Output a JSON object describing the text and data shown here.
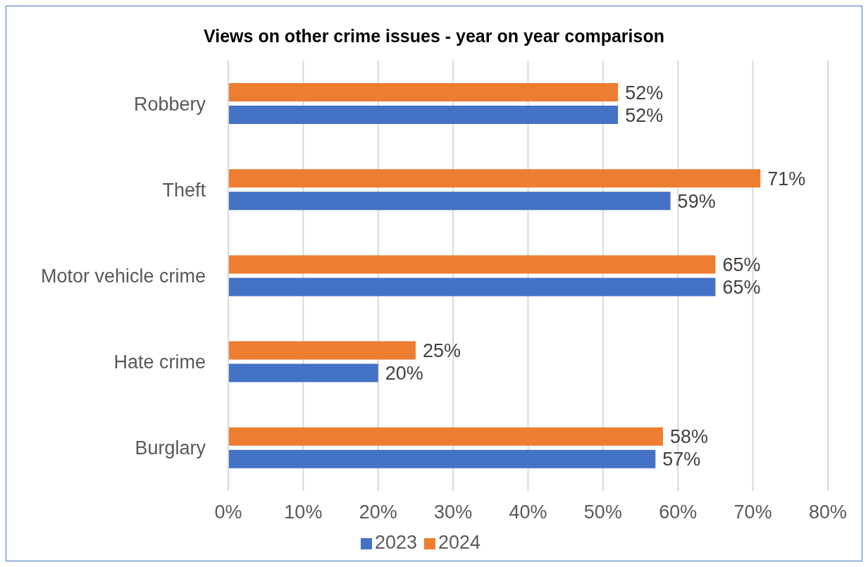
{
  "chart_data": {
    "type": "bar",
    "orientation": "horizontal",
    "title": "Views on other crime issues - year on year comparison",
    "categories": [
      "Robbery",
      "Theft",
      "Motor vehicle crime",
      "Hate crime",
      "Burglary"
    ],
    "series": [
      {
        "name": "2024",
        "color": "#ed7d31",
        "values": [
          52,
          71,
          65,
          25,
          58
        ],
        "value_labels": [
          "52%",
          "71%",
          "65%",
          "25%",
          "58%"
        ]
      },
      {
        "name": "2023",
        "color": "#4472c4",
        "values": [
          52,
          59,
          65,
          20,
          57
        ],
        "value_labels": [
          "52%",
          "59%",
          "65%",
          "20%",
          "57%"
        ]
      }
    ],
    "xlim": [
      0,
      80
    ],
    "xticks": [
      {
        "value": 0,
        "label": "0%"
      },
      {
        "value": 10,
        "label": "10%"
      },
      {
        "value": 20,
        "label": "20%"
      },
      {
        "value": 30,
        "label": "30%"
      },
      {
        "value": 40,
        "label": "40%"
      },
      {
        "value": 50,
        "label": "50%"
      },
      {
        "value": 60,
        "label": "60%"
      },
      {
        "value": 70,
        "label": "70%"
      },
      {
        "value": 80,
        "label": "80%"
      }
    ],
    "grid": "x",
    "legend": "bottom"
  }
}
